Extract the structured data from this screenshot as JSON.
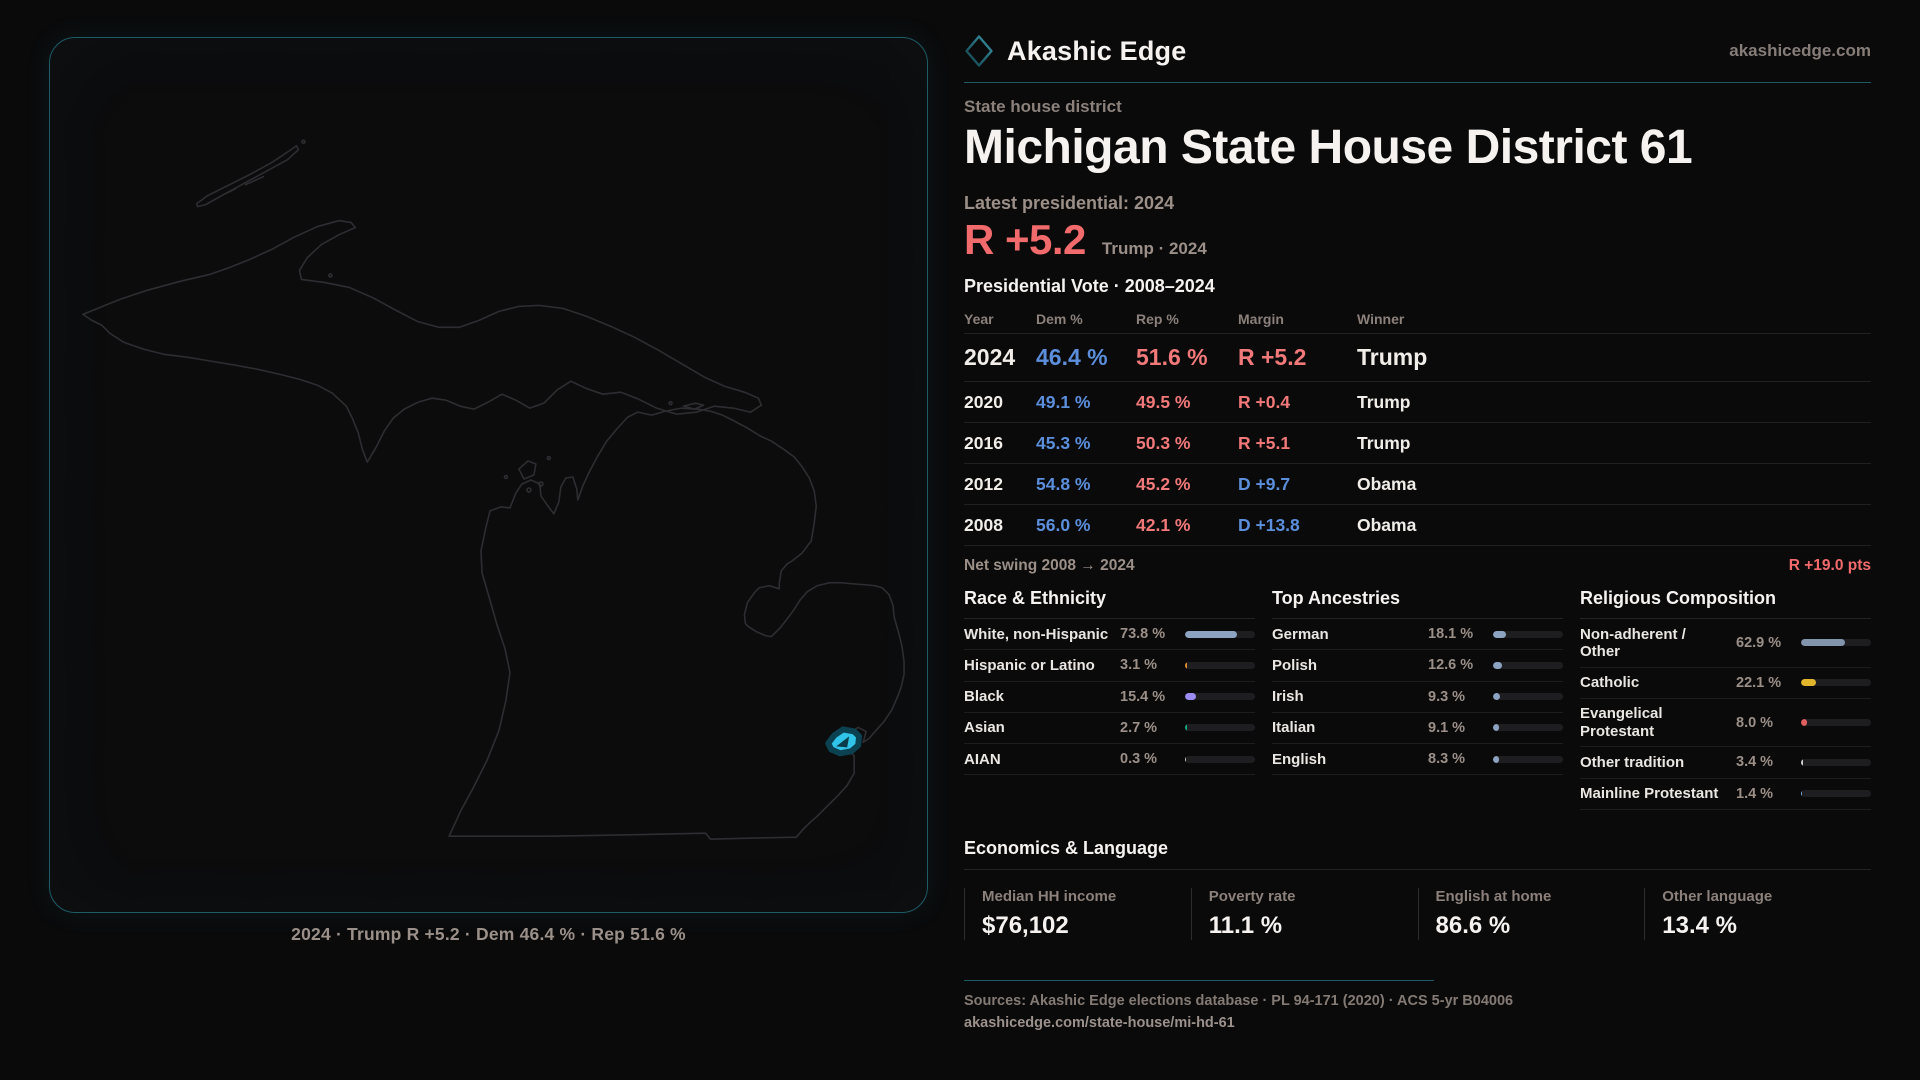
{
  "brand": {
    "name": "Akashic Edge",
    "domain": "akashicedge.com"
  },
  "page": {
    "kicker": "State house district",
    "title": "Michigan State House District 61",
    "latest_label": "Latest presidential: 2024",
    "headline_margin": "R +5.2",
    "headline_context": "Trump · 2024",
    "table_title": "Presidential Vote · 2008–2024",
    "net_swing_label": "Net swing 2008 → 2024",
    "net_swing_value": "R +19.0 pts"
  },
  "map": {
    "caption": "2024 · Trump R +5.2 · Dem 46.4 % · Rep 51.6 %",
    "district_color": "#2fc4e8"
  },
  "vote_table": {
    "columns": [
      "Year",
      "Dem %",
      "Rep %",
      "Margin",
      "Winner"
    ],
    "rows": [
      {
        "year": "2024",
        "dem": "46.4 %",
        "rep": "51.6 %",
        "margin": "R +5.2",
        "winner": "Trump"
      },
      {
        "year": "2020",
        "dem": "49.1 %",
        "rep": "49.5 %",
        "margin": "R +0.4",
        "winner": "Trump"
      },
      {
        "year": "2016",
        "dem": "45.3 %",
        "rep": "50.3 %",
        "margin": "R +5.1",
        "winner": "Trump"
      },
      {
        "year": "2012",
        "dem": "54.8 %",
        "rep": "45.2 %",
        "margin": "D +9.7",
        "winner": "Obama"
      },
      {
        "year": "2008",
        "dem": "56.0 %",
        "rep": "42.1 %",
        "margin": "D +13.8",
        "winner": "Obama"
      }
    ]
  },
  "demographics": [
    {
      "title": "Race & Ethnicity",
      "rows": [
        {
          "label": "White, non-Hispanic",
          "value": "73.8 %",
          "pct": 73.8,
          "color": "#8ca3c2"
        },
        {
          "label": "Hispanic or Latino",
          "value": "3.1 %",
          "pct": 3.1,
          "color": "#dd8f2d"
        },
        {
          "label": "Black",
          "value": "15.4 %",
          "pct": 15.4,
          "color": "#9b8cf2"
        },
        {
          "label": "Asian",
          "value": "2.7 %",
          "pct": 2.7,
          "color": "#13a97b"
        },
        {
          "label": "AIAN",
          "value": "0.3 %",
          "pct": 0.3,
          "color": "#c9c4c0"
        }
      ]
    },
    {
      "title": "Top Ancestries",
      "rows": [
        {
          "label": "German",
          "value": "18.1 %",
          "pct": 18.1,
          "color": "#8ca3c2"
        },
        {
          "label": "Polish",
          "value": "12.6 %",
          "pct": 12.6,
          "color": "#8ca3c2"
        },
        {
          "label": "Irish",
          "value": "9.3 %",
          "pct": 9.3,
          "color": "#8ca3c2"
        },
        {
          "label": "Italian",
          "value": "9.1 %",
          "pct": 9.1,
          "color": "#8ca3c2"
        },
        {
          "label": "English",
          "value": "8.3 %",
          "pct": 8.3,
          "color": "#8ca3c2"
        }
      ]
    },
    {
      "title": "Religious Composition",
      "rows": [
        {
          "label": "Non-adherent / Other",
          "value": "62.9 %",
          "pct": 62.9,
          "color": "#8295ad"
        },
        {
          "label": "Catholic",
          "value": "22.1 %",
          "pct": 22.1,
          "color": "#e2b62c"
        },
        {
          "label": "Evangelical Protestant",
          "value": "8.0 %",
          "pct": 8.0,
          "color": "#e05f5f"
        },
        {
          "label": "Other tradition",
          "value": "3.4 %",
          "pct": 3.4,
          "color": "#cfcfcf"
        },
        {
          "label": "Mainline Protestant",
          "value": "1.4 %",
          "pct": 1.4,
          "color": "#74aee4"
        }
      ]
    }
  ],
  "economics": {
    "title": "Economics & Language",
    "stats": [
      {
        "label": "Median HH income",
        "value": "$76,102"
      },
      {
        "label": "Poverty rate",
        "value": "11.1 %"
      },
      {
        "label": "English at home",
        "value": "86.6 %"
      },
      {
        "label": "Other language",
        "value": "13.4 %"
      }
    ]
  },
  "footer": {
    "sources": "Sources: Akashic Edge elections database · PL 94-171 (2020) · ACS 5-yr B04006",
    "permalink": "akashicedge.com/state-house/mi-hd-61"
  },
  "colors": {
    "dem_blue": "#5b8fdb",
    "rep_red": "#f27979",
    "accent_teal": "#1d5a64",
    "district_cyan": "#2fc4e8",
    "background": "#0a0a0b"
  },
  "chart_data": [
    {
      "type": "table",
      "title": "Presidential Vote · 2008–2024",
      "columns": [
        "Year",
        "Dem %",
        "Rep %",
        "Margin",
        "Winner"
      ],
      "rows": [
        [
          "2024",
          46.4,
          51.6,
          "R +5.2",
          "Trump"
        ],
        [
          "2020",
          49.1,
          49.5,
          "R +0.4",
          "Trump"
        ],
        [
          "2016",
          45.3,
          50.3,
          "R +5.1",
          "Trump"
        ],
        [
          "2012",
          54.8,
          45.2,
          "D +9.7",
          "Obama"
        ],
        [
          "2008",
          56.0,
          42.1,
          "D +13.8",
          "Obama"
        ]
      ],
      "annotations": [
        "Net swing 2008 → 2024: R +19.0 pts",
        "Latest presidential 2024: R +5.2 (Trump)"
      ]
    },
    {
      "type": "bar",
      "title": "Race & Ethnicity",
      "categories": [
        "White, non-Hispanic",
        "Hispanic or Latino",
        "Black",
        "Asian",
        "AIAN"
      ],
      "values": [
        73.8,
        3.1,
        15.4,
        2.7,
        0.3
      ],
      "unit": "%",
      "xlim": [
        0,
        100
      ]
    },
    {
      "type": "bar",
      "title": "Top Ancestries",
      "categories": [
        "German",
        "Polish",
        "Irish",
        "Italian",
        "English"
      ],
      "values": [
        18.1,
        12.6,
        9.3,
        9.1,
        8.3
      ],
      "unit": "%",
      "xlim": [
        0,
        100
      ]
    },
    {
      "type": "bar",
      "title": "Religious Composition",
      "categories": [
        "Non-adherent / Other",
        "Catholic",
        "Evangelical Protestant",
        "Other tradition",
        "Mainline Protestant"
      ],
      "values": [
        62.9,
        22.1,
        8.0,
        3.4,
        1.4
      ],
      "unit": "%",
      "xlim": [
        0,
        100
      ]
    },
    {
      "type": "table",
      "title": "Economics & Language",
      "columns": [
        "Median HH income",
        "Poverty rate",
        "English at home",
        "Other language"
      ],
      "rows": [
        [
          "$76,102",
          "11.1 %",
          "86.6 %",
          "13.4 %"
        ]
      ]
    }
  ]
}
